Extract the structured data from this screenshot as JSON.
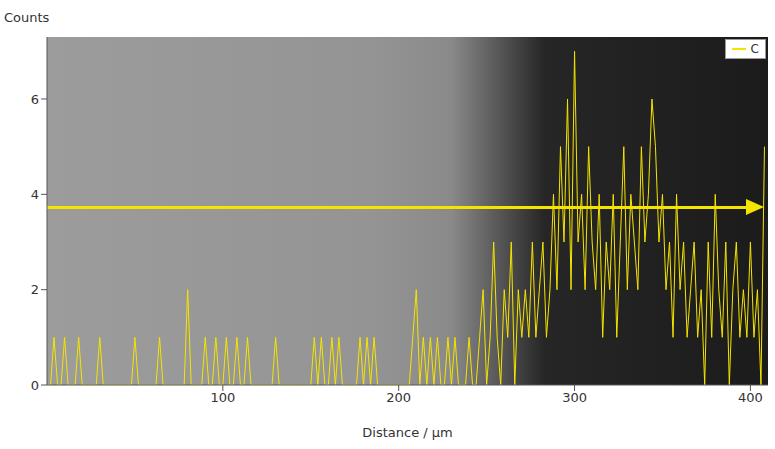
{
  "chart_data": {
    "type": "line",
    "y_label": "Counts",
    "x_label": "Distance / µm",
    "legend": "top right",
    "xlim": [
      0,
      410
    ],
    "xticks": [
      100,
      200,
      300,
      400
    ],
    "ylim": [
      0,
      7.3
    ],
    "yticks": [
      0,
      2,
      4,
      6
    ],
    "x": [
      0,
      2,
      4,
      6,
      8,
      10,
      12,
      14,
      16,
      18,
      20,
      22,
      24,
      26,
      28,
      30,
      32,
      34,
      36,
      38,
      40,
      42,
      44,
      46,
      48,
      50,
      52,
      54,
      56,
      58,
      60,
      62,
      64,
      66,
      68,
      70,
      72,
      74,
      76,
      78,
      80,
      82,
      84,
      86,
      88,
      90,
      92,
      94,
      96,
      98,
      100,
      102,
      104,
      106,
      108,
      110,
      112,
      114,
      116,
      118,
      120,
      122,
      124,
      126,
      128,
      130,
      132,
      134,
      136,
      138,
      140,
      142,
      144,
      146,
      148,
      150,
      152,
      154,
      156,
      158,
      160,
      162,
      164,
      166,
      168,
      170,
      172,
      174,
      176,
      178,
      180,
      182,
      184,
      186,
      188,
      190,
      192,
      194,
      196,
      198,
      200,
      202,
      204,
      206,
      208,
      210,
      212,
      214,
      216,
      218,
      220,
      222,
      224,
      226,
      228,
      230,
      232,
      234,
      236,
      238,
      240,
      242,
      244,
      246,
      248,
      250,
      252,
      254,
      256,
      258,
      260,
      262,
      264,
      266,
      268,
      270,
      272,
      274,
      276,
      278,
      280,
      282,
      284,
      286,
      288,
      290,
      292,
      294,
      296,
      298,
      300,
      302,
      304,
      306,
      308,
      310,
      312,
      314,
      316,
      318,
      320,
      322,
      324,
      326,
      328,
      330,
      332,
      334,
      336,
      338,
      340,
      342,
      344,
      346,
      348,
      350,
      352,
      354,
      356,
      358,
      360,
      362,
      364,
      366,
      368,
      370,
      372,
      374,
      376,
      378,
      380,
      382,
      384,
      386,
      388,
      390,
      392,
      394,
      396,
      398,
      400,
      402,
      404,
      406,
      408
    ],
    "series": [
      {
        "name": "C",
        "color": "#f5e400",
        "values": [
          0,
          0,
          1,
          0,
          0,
          1,
          0,
          0,
          0,
          1,
          0,
          0,
          0,
          0,
          0,
          1,
          0,
          0,
          0,
          0,
          0,
          0,
          0,
          0,
          0,
          1,
          0,
          0,
          0,
          0,
          0,
          0,
          1,
          0,
          0,
          0,
          0,
          0,
          0,
          0,
          2,
          0,
          0,
          0,
          0,
          1,
          0,
          0,
          1,
          0,
          0,
          1,
          0,
          0,
          1,
          0,
          0,
          1,
          0,
          0,
          0,
          0,
          0,
          0,
          0,
          1,
          0,
          0,
          0,
          0,
          0,
          0,
          0,
          0,
          0,
          0,
          1,
          0,
          1,
          0,
          0,
          1,
          0,
          1,
          0,
          0,
          0,
          0,
          0,
          1,
          0,
          1,
          0,
          1,
          0,
          0,
          0,
          0,
          0,
          0,
          0,
          0,
          0,
          0,
          1,
          2,
          0,
          1,
          0,
          1,
          0,
          1,
          0,
          0,
          1,
          0,
          1,
          0,
          0,
          0,
          1,
          0,
          0,
          1,
          2,
          0,
          1,
          3,
          1,
          0,
          2,
          1,
          3,
          0,
          2,
          1,
          2,
          1,
          3,
          1,
          2,
          3,
          1,
          2,
          4,
          2,
          5,
          3,
          6,
          2,
          7,
          3,
          4,
          2,
          5,
          3,
          2,
          4,
          1,
          3,
          2,
          4,
          1,
          3,
          5,
          2,
          4,
          3,
          2,
          5,
          3,
          4,
          6,
          5,
          3,
          4,
          2,
          3,
          1,
          4,
          2,
          3,
          1,
          2,
          3,
          1,
          2,
          0,
          3,
          1,
          4,
          2,
          1,
          3,
          0,
          2,
          3,
          1,
          2,
          1,
          3,
          1,
          2,
          0,
          5
        ]
      }
    ]
  }
}
